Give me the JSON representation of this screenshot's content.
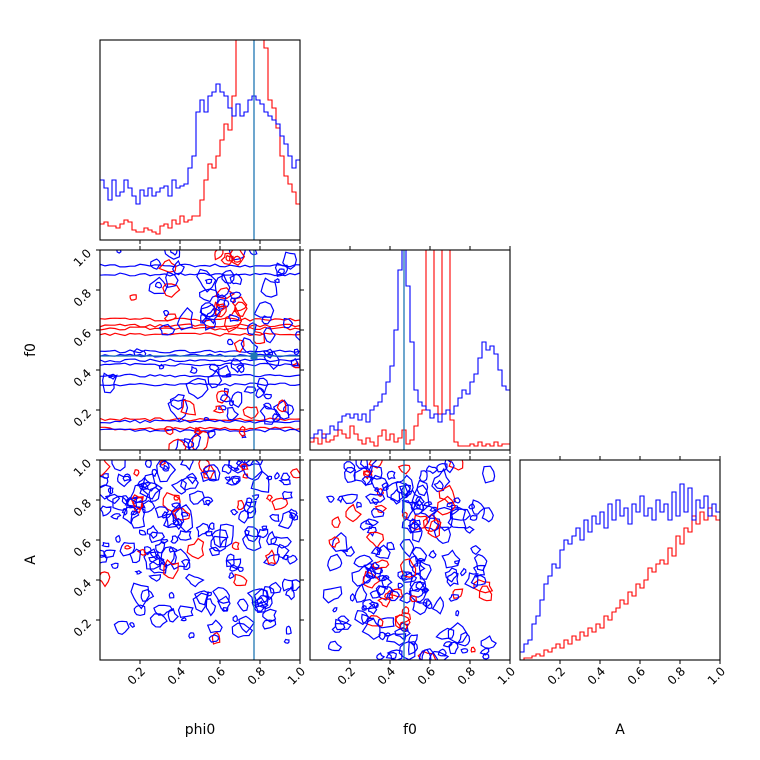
{
  "chart_data": {
    "type": "corner",
    "parameters": [
      "phi0",
      "f0",
      "A"
    ],
    "axis_ranges": {
      "phi0": [
        0,
        1
      ],
      "f0": [
        0,
        1
      ],
      "A": [
        0,
        1
      ]
    },
    "tick_labels": [
      "0.2",
      "0.4",
      "0.6",
      "0.8",
      "1.0"
    ],
    "truth": {
      "phi0": 0.77,
      "f0": 0.47
    },
    "colors": {
      "truth": "#1f77b4",
      "series_red": "#ff0000",
      "series_blue": "#0000ff"
    },
    "histograms": [
      {
        "parameter": "phi0",
        "y_max": 1.0,
        "bins": 50,
        "series": [
          {
            "color": "red",
            "values": [
              0.08,
              0.09,
              0.07,
              0.07,
              0.06,
              0.08,
              0.1,
              0.09,
              0.05,
              0.04,
              0.04,
              0.06,
              0.05,
              0.04,
              0.03,
              0.07,
              0.08,
              0.06,
              0.1,
              0.08,
              0.12,
              0.09,
              0.1,
              0.12,
              0.12,
              0.2,
              0.3,
              0.38,
              0.36,
              0.42,
              0.5,
              0.58,
              0.55,
              0.72,
              1.05,
              1.08,
              1.02,
              1.04,
              1.06,
              1.05,
              1.08,
              0.96,
              0.7,
              0.66,
              0.56,
              0.42,
              0.32,
              0.28,
              0.24,
              0.18
            ]
          },
          {
            "color": "blue",
            "values": [
              0.3,
              0.26,
              0.2,
              0.3,
              0.22,
              0.24,
              0.3,
              0.26,
              0.22,
              0.18,
              0.25,
              0.22,
              0.26,
              0.22,
              0.24,
              0.26,
              0.27,
              0.22,
              0.3,
              0.26,
              0.27,
              0.28,
              0.36,
              0.42,
              0.64,
              0.7,
              0.64,
              0.72,
              0.74,
              0.78,
              0.74,
              0.72,
              0.66,
              0.62,
              0.68,
              0.62,
              0.64,
              0.7,
              0.72,
              0.7,
              0.68,
              0.64,
              0.62,
              0.6,
              0.58,
              0.52,
              0.48,
              0.42,
              0.36,
              0.4
            ]
          }
        ]
      },
      {
        "parameter": "f0",
        "y_max": 1.0,
        "bins": 50,
        "series": [
          {
            "color": "red",
            "values": [
              0.04,
              0.06,
              0.03,
              0.08,
              0.04,
              0.05,
              0.07,
              0.1,
              0.08,
              0.06,
              0.12,
              0.08,
              0.05,
              0.03,
              0.06,
              0.04,
              0.02,
              0.07,
              0.1,
              0.05,
              0.08,
              0.04,
              0.06,
              0.1,
              0.03,
              0.05,
              0.12,
              0.18,
              0.2,
              1.3,
              1.3,
              0.22,
              0.18,
              1.3,
              1.3,
              0.15,
              0.04,
              0.02,
              0.02,
              0.02,
              0.03,
              0.02,
              0.04,
              0.02,
              0.03,
              0.02,
              0.04,
              0.02,
              0.03,
              0.03
            ]
          },
          {
            "color": "blue",
            "values": [
              0.06,
              0.08,
              0.1,
              0.06,
              0.08,
              0.12,
              0.1,
              0.14,
              0.17,
              0.18,
              0.16,
              0.18,
              0.15,
              0.18,
              0.14,
              0.2,
              0.22,
              0.24,
              0.28,
              0.34,
              0.42,
              0.6,
              0.9,
              1.06,
              0.82,
              0.54,
              0.3,
              0.24,
              0.22,
              0.2,
              0.16,
              0.18,
              0.14,
              0.18,
              0.2,
              0.18,
              0.22,
              0.26,
              0.3,
              0.28,
              0.34,
              0.38,
              0.46,
              0.54,
              0.5,
              0.52,
              0.48,
              0.4,
              0.32,
              0.3
            ]
          }
        ]
      },
      {
        "parameter": "A",
        "y_max": 1.0,
        "bins": 50,
        "series": [
          {
            "color": "red",
            "values": [
              0.0,
              0.01,
              0.01,
              0.02,
              0.03,
              0.02,
              0.05,
              0.04,
              0.06,
              0.08,
              0.06,
              0.1,
              0.08,
              0.12,
              0.1,
              0.14,
              0.12,
              0.16,
              0.14,
              0.18,
              0.16,
              0.22,
              0.2,
              0.24,
              0.26,
              0.3,
              0.28,
              0.34,
              0.32,
              0.38,
              0.36,
              0.4,
              0.46,
              0.44,
              0.48,
              0.5,
              0.48,
              0.56,
              0.52,
              0.62,
              0.58,
              0.66,
              0.64,
              0.72,
              0.68,
              0.74,
              0.7,
              0.76,
              0.72,
              0.7
            ]
          },
          {
            "color": "blue",
            "values": [
              0.04,
              0.08,
              0.1,
              0.18,
              0.22,
              0.3,
              0.38,
              0.42,
              0.48,
              0.46,
              0.55,
              0.6,
              0.58,
              0.62,
              0.66,
              0.6,
              0.7,
              0.64,
              0.72,
              0.68,
              0.74,
              0.66,
              0.78,
              0.7,
              0.8,
              0.72,
              0.76,
              0.68,
              0.78,
              0.74,
              0.82,
              0.72,
              0.76,
              0.7,
              0.8,
              0.74,
              0.78,
              0.7,
              0.84,
              0.72,
              0.88,
              0.74,
              0.86,
              0.7,
              0.8,
              0.76,
              0.82,
              0.72,
              0.78,
              0.74
            ]
          }
        ]
      }
    ]
  }
}
